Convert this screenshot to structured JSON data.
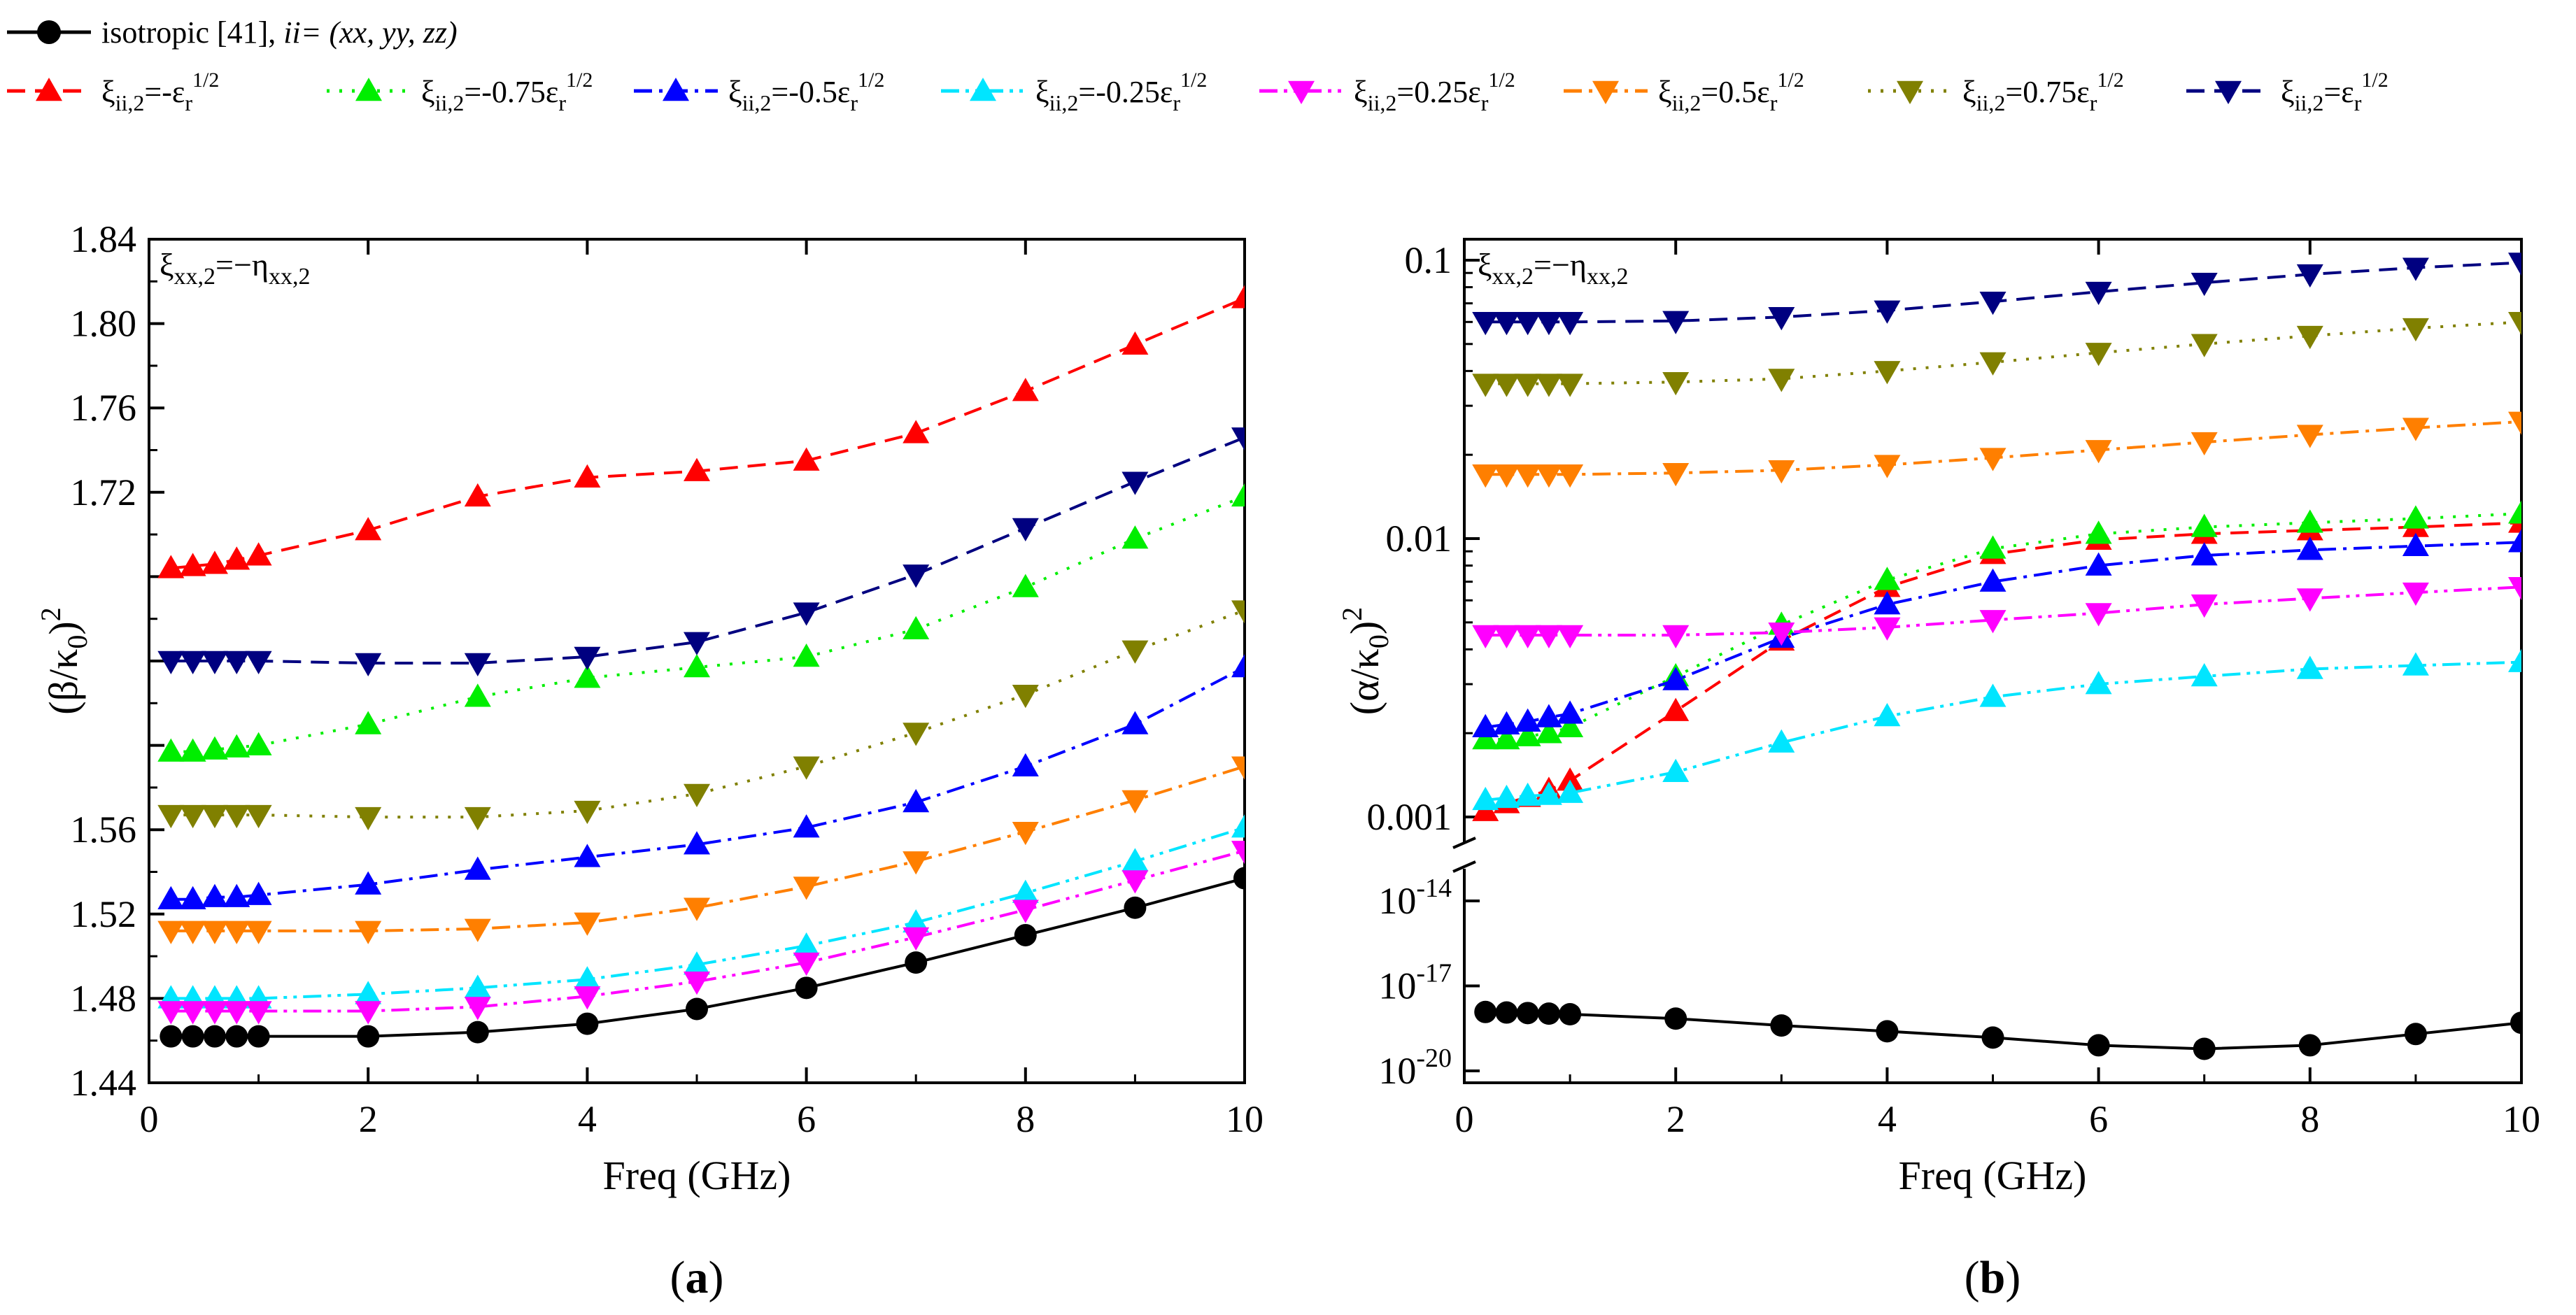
{
  "figure": {
    "caption_a": {
      "pre": "(",
      "letter": "a",
      "post": ")"
    },
    "caption_b": {
      "pre": "(",
      "letter": "b",
      "post": ")"
    }
  },
  "legend": {
    "isotropic": {
      "main": "isotropic [41], ",
      "ii": "ii",
      "rest": "= (xx, yy, zz)"
    },
    "entries": [
      {
        "label": "ξii,2=-εr1/2",
        "coef": "-",
        "color": "#ff0000",
        "marker": "triangle-up-icon",
        "dash": "dashed"
      },
      {
        "label": "ξii,2=-0.75εr1/2",
        "coef": "-0.75",
        "color": "#00ee00",
        "marker": "triangle-up-icon",
        "dash": "dotted"
      },
      {
        "label": "ξii,2=-0.5εr1/2",
        "coef": "-0.5",
        "color": "#0000ff",
        "marker": "triangle-up-icon",
        "dash": "dashdot"
      },
      {
        "label": "ξii,2=-0.25εr1/2",
        "coef": "-0.25",
        "color": "#00e5ff",
        "marker": "triangle-up-icon",
        "dash": "dashdotdot"
      },
      {
        "label": "ξii,2=0.25εr1/2",
        "coef": "0.25",
        "color": "#ff00ff",
        "marker": "triangle-down-icon",
        "dash": "dashdotdot"
      },
      {
        "label": "ξii,2=0.5εr1/2",
        "coef": "0.5",
        "color": "#ff7f00",
        "marker": "triangle-down-icon",
        "dash": "dashdot"
      },
      {
        "label": "ξii,2=0.75εr1/2",
        "coef": "0.75",
        "color": "#808000",
        "marker": "triangle-down-icon",
        "dash": "dotted"
      },
      {
        "label": "ξii,2=εr1/2",
        "coef": "",
        "color": "#000080",
        "marker": "triangle-down-icon",
        "dash": "dashed"
      }
    ]
  },
  "chart_data": [
    {
      "type": "line",
      "panel": "a",
      "xlabel": "Freq (GHz)",
      "ylabel": "(β/κ0)2",
      "annotation": "ξxx,2=−ηxx,2",
      "xlim": [
        0,
        10
      ],
      "ylim": [
        1.44,
        1.84
      ],
      "xticks": [
        0,
        2,
        4,
        6,
        8,
        10
      ],
      "xtick_labels": [
        "0",
        "2",
        "4",
        "6",
        "8",
        "10"
      ],
      "yticks": [
        1.44,
        1.48,
        1.52,
        1.56,
        1.72,
        1.76,
        1.8,
        1.84
      ],
      "ytick_labels": [
        "1.44",
        "1.48",
        "1.52",
        "1.56",
        "1.72",
        "1.76",
        "1.80",
        "1.84"
      ],
      "x": [
        0.2,
        0.4,
        0.6,
        0.8,
        1,
        2,
        3,
        4,
        5,
        6,
        7,
        8,
        9,
        10
      ],
      "series": [
        {
          "name": "isotropic [41]",
          "values": [
            1.462,
            1.462,
            1.462,
            1.462,
            1.462,
            1.462,
            1.464,
            1.468,
            1.475,
            1.485,
            1.497,
            1.51,
            1.523,
            1.537
          ]
        },
        {
          "name": "ξii,2=-εr^1/2",
          "values": [
            1.684,
            1.685,
            1.686,
            1.688,
            1.69,
            1.702,
            1.718,
            1.727,
            1.73,
            1.735,
            1.748,
            1.768,
            1.79,
            1.812
          ]
        },
        {
          "name": "ξii,2=-0.75εr^1/2",
          "values": [
            1.597,
            1.597,
            1.598,
            1.599,
            1.6,
            1.61,
            1.623,
            1.632,
            1.637,
            1.642,
            1.655,
            1.675,
            1.698,
            1.718
          ]
        },
        {
          "name": "ξii,2=-0.5εr^1/2",
          "values": [
            1.527,
            1.527,
            1.528,
            1.528,
            1.529,
            1.534,
            1.541,
            1.547,
            1.553,
            1.561,
            1.573,
            1.59,
            1.61,
            1.637
          ]
        },
        {
          "name": "ξii,2=-0.25εr^1/2",
          "values": [
            1.48,
            1.48,
            1.48,
            1.48,
            1.48,
            1.482,
            1.485,
            1.489,
            1.496,
            1.505,
            1.516,
            1.53,
            1.545,
            1.561
          ]
        },
        {
          "name": "ξii,2=0.25εr^1/2",
          "values": [
            1.474,
            1.474,
            1.474,
            1.474,
            1.474,
            1.474,
            1.476,
            1.481,
            1.488,
            1.497,
            1.509,
            1.522,
            1.536,
            1.55
          ]
        },
        {
          "name": "ξii,2=0.5εr^1/2",
          "values": [
            1.512,
            1.512,
            1.512,
            1.512,
            1.512,
            1.512,
            1.513,
            1.516,
            1.523,
            1.533,
            1.545,
            1.559,
            1.574,
            1.59
          ]
        },
        {
          "name": "ξii,2=0.75εr^1/2",
          "values": [
            1.567,
            1.567,
            1.567,
            1.567,
            1.567,
            1.566,
            1.566,
            1.569,
            1.577,
            1.59,
            1.606,
            1.624,
            1.645,
            1.664
          ]
        },
        {
          "name": "ξii,2=εr^1/2",
          "values": [
            1.64,
            1.64,
            1.64,
            1.64,
            1.64,
            1.639,
            1.639,
            1.642,
            1.649,
            1.663,
            1.681,
            1.703,
            1.725,
            1.746
          ]
        }
      ]
    },
    {
      "type": "line",
      "panel": "b",
      "yscale": "log",
      "broken_axis": true,
      "xlabel": "Freq (GHz)",
      "ylabel": "(α/κ0)2",
      "annotation": "ξxx,2=−ηxx,2",
      "xlim": [
        0,
        10
      ],
      "ylim_upper": [
        0.001,
        0.1
      ],
      "ylim_lower": [
        1e-20,
        1e-14
      ],
      "xticks": [
        0,
        2,
        4,
        6,
        8,
        10
      ],
      "xtick_labels": [
        "0",
        "2",
        "4",
        "6",
        "8",
        "10"
      ],
      "yticks_upper": [
        0.001,
        0.01,
        0.1
      ],
      "ytick_labels_upper": [
        "0.001",
        "0.01",
        "0.1"
      ],
      "yticks_lower": [
        1e-20,
        1e-17,
        1e-14
      ],
      "ytick_labels_lower": [
        {
          "base": "10",
          "exp": "-20"
        },
        {
          "base": "10",
          "exp": "-17"
        },
        {
          "base": "10",
          "exp": "-14"
        }
      ],
      "x": [
        0.2,
        0.4,
        0.6,
        0.8,
        1,
        2,
        3,
        4,
        5,
        6,
        7,
        8,
        9,
        10
      ],
      "series": [
        {
          "name": "isotropic [41]",
          "values": [
            1.2e-18,
            1.15e-18,
            1.1e-18,
            1.05e-18,
            1e-18,
            7e-19,
            4e-19,
            2.5e-19,
            1.5e-19,
            8e-20,
            6e-20,
            8e-20,
            2e-19,
            5e-19
          ]
        },
        {
          "name": "ξii,2=-εr^1/2",
          "values": [
            0.00105,
            0.00112,
            0.00118,
            0.00125,
            0.00135,
            0.0024,
            0.0043,
            0.0067,
            0.0088,
            0.0099,
            0.0104,
            0.0107,
            0.011,
            0.0114
          ]
        },
        {
          "name": "ξii,2=-0.75εr^1/2",
          "values": [
            0.0019,
            0.0019,
            0.00195,
            0.002,
            0.0021,
            0.0032,
            0.0049,
            0.0071,
            0.0092,
            0.0104,
            0.011,
            0.0114,
            0.0118,
            0.0123
          ]
        },
        {
          "name": "ξii,2=-0.5εr^1/2",
          "values": [
            0.0021,
            0.00215,
            0.0022,
            0.00228,
            0.00235,
            0.0031,
            0.0044,
            0.0058,
            0.007,
            0.008,
            0.0087,
            0.0091,
            0.0094,
            0.0097
          ]
        },
        {
          "name": "ξii,2=-0.25εr^1/2",
          "values": [
            0.00115,
            0.00117,
            0.00119,
            0.0012,
            0.00122,
            0.00145,
            0.00185,
            0.0023,
            0.0027,
            0.003,
            0.0032,
            0.0034,
            0.0035,
            0.0036
          ]
        },
        {
          "name": "ξii,2=0.25εr^1/2",
          "values": [
            0.0045,
            0.0045,
            0.0045,
            0.0045,
            0.0045,
            0.0045,
            0.0046,
            0.0048,
            0.0051,
            0.0054,
            0.0058,
            0.0061,
            0.0064,
            0.0067
          ]
        },
        {
          "name": "ξii,2=0.5εr^1/2",
          "values": [
            0.017,
            0.017,
            0.017,
            0.017,
            0.017,
            0.0172,
            0.0176,
            0.0184,
            0.0195,
            0.0208,
            0.0222,
            0.0236,
            0.025,
            0.0263
          ]
        },
        {
          "name": "ξii,2=0.75εr^1/2",
          "values": [
            0.036,
            0.036,
            0.036,
            0.036,
            0.036,
            0.0365,
            0.0375,
            0.04,
            0.043,
            0.0465,
            0.05,
            0.0535,
            0.057,
            0.06
          ]
        },
        {
          "name": "ξii,2=εr^1/2",
          "values": [
            0.06,
            0.06,
            0.06,
            0.06,
            0.06,
            0.0605,
            0.0625,
            0.066,
            0.071,
            0.077,
            0.083,
            0.089,
            0.094,
            0.098
          ]
        }
      ]
    }
  ]
}
